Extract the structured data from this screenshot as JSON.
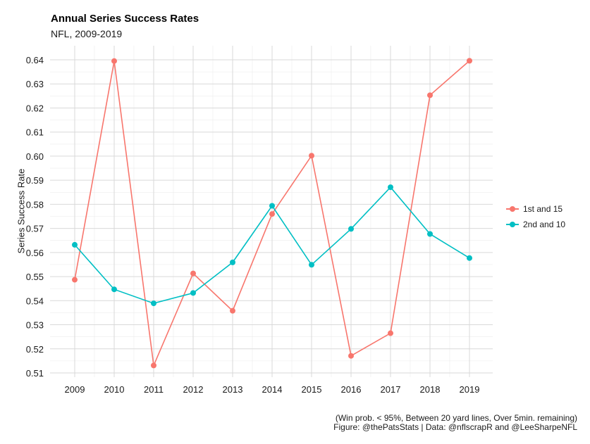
{
  "chart_data": {
    "type": "line",
    "title": "Annual Series Success Rates",
    "subtitle": "NFL, 2009-2019",
    "ylabel": "Series Success Rate",
    "xlabel": "",
    "x": [
      2009,
      2010,
      2011,
      2012,
      2013,
      2014,
      2015,
      2016,
      2017,
      2018,
      2019
    ],
    "ylim": [
      0.508,
      0.644
    ],
    "yticks": [
      0.51,
      0.52,
      0.53,
      0.54,
      0.55,
      0.56,
      0.57,
      0.58,
      0.59,
      0.6,
      0.61,
      0.62,
      0.63,
      0.64
    ],
    "ytick_labels": [
      "0.51",
      "0.52",
      "0.53",
      "0.54",
      "0.55",
      "0.56",
      "0.57",
      "0.58",
      "0.59",
      "0.60",
      "0.61",
      "0.62",
      "0.63",
      "0.64"
    ],
    "grid": true,
    "legend_position": "right",
    "series": [
      {
        "name": "1st and 15",
        "color": "#F8766D",
        "values": [
          0.5487,
          0.6395,
          0.5131,
          0.5513,
          0.5358,
          0.576,
          0.6002,
          0.5171,
          0.5265,
          0.6253,
          0.6396
        ]
      },
      {
        "name": "2nd and 10",
        "color": "#00BFC4",
        "values": [
          0.5632,
          0.5447,
          0.5389,
          0.5432,
          0.5559,
          0.5794,
          0.5549,
          0.5698,
          0.5871,
          0.5677,
          0.5577
        ]
      }
    ],
    "caption": [
      "(Win prob. < 95%, Between 20 yard lines, Over 5min. remaining)",
      "Figure: @thePatsStats | Data: @nflscrapR and @LeeSharpeNFL"
    ]
  }
}
